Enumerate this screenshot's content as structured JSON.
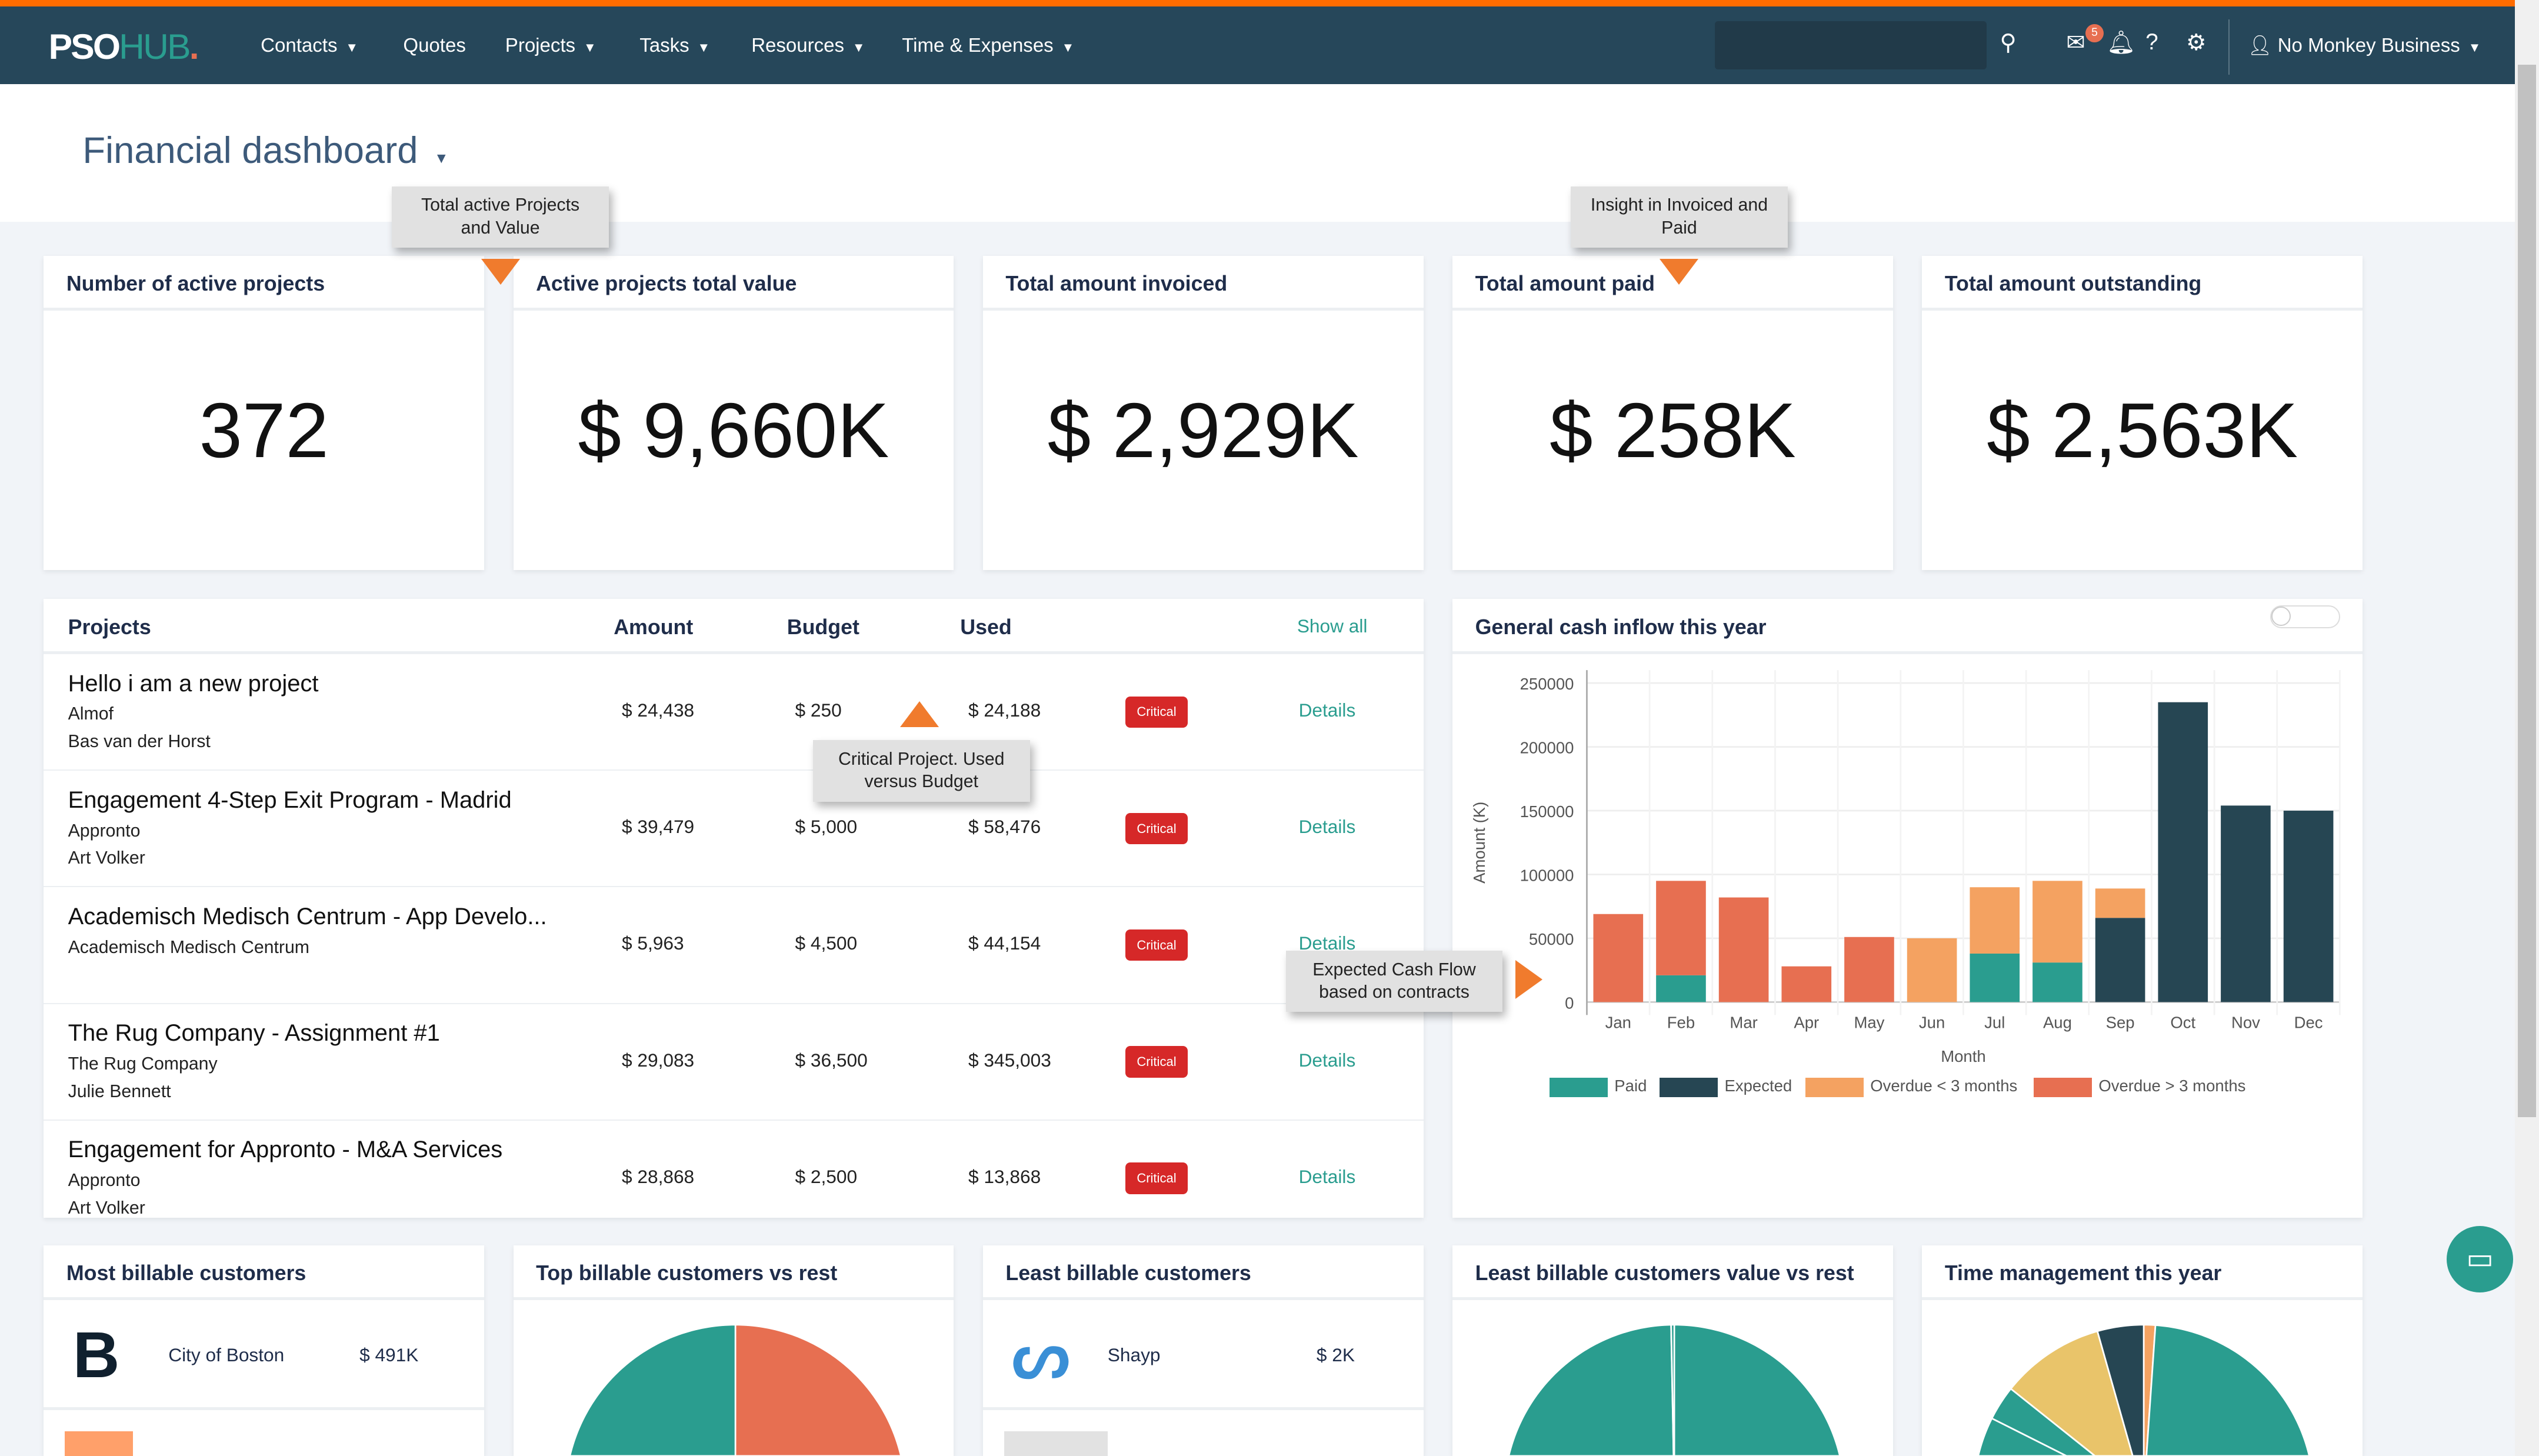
{
  "nav": {
    "logo_pso": "PSO",
    "logo_hub": "HUB",
    "logo_dot": ".",
    "items": [
      {
        "label": "Contacts",
        "caret": true
      },
      {
        "label": "Quotes",
        "caret": false
      },
      {
        "label": "Projects",
        "caret": true
      },
      {
        "label": "Tasks",
        "caret": true
      },
      {
        "label": "Resources",
        "caret": true
      },
      {
        "label": "Time & Expenses",
        "caret": true
      }
    ],
    "search_value": "",
    "notification_count": "5",
    "user": "No Monkey Business"
  },
  "page": {
    "title": "Financial dashboard"
  },
  "tooltips": {
    "active": "Total active Projects and Value",
    "invoiced": "Insight in Invoiced and Paid",
    "critical": "Critical Project. Used versus Budget",
    "cashflow": "Expected Cash Flow based on contracts"
  },
  "kpis": [
    {
      "title": "Number of active projects",
      "value": "372"
    },
    {
      "title": "Active projects total value",
      "value": "$ 9,660K"
    },
    {
      "title": "Total amount invoiced",
      "value": "$ 2,929K"
    },
    {
      "title": "Total amount paid",
      "value": "$ 258K"
    },
    {
      "title": "Total amount outstanding",
      "value": "$ 2,563K"
    }
  ],
  "projects": {
    "title": "Projects",
    "col_amount": "Amount",
    "col_budget": "Budget",
    "col_used": "Used",
    "show_all": "Show all",
    "rows": [
      {
        "name": "Hello i am a new project",
        "company": "Almof",
        "person": "Bas van der Horst",
        "amount": "$ 24,438",
        "budget": "$ 250",
        "used": "$ 24,188",
        "status": "Critical",
        "action": "Details"
      },
      {
        "name": "Engagement 4-Step Exit Program - Madrid",
        "company": "Appronto",
        "person": "Art Volker",
        "amount": "$ 39,479",
        "budget": "$ 5,000",
        "used": "$ 58,476",
        "status": "Critical",
        "action": "Details"
      },
      {
        "name": "Academisch Medisch Centrum - App Develo...",
        "company": "Academisch Medisch Centrum",
        "person": "",
        "amount": "$ 5,963",
        "budget": "$ 4,500",
        "used": "$ 44,154",
        "status": "Critical",
        "action": "Details"
      },
      {
        "name": "The Rug Company - Assignment #1",
        "company": "The Rug Company",
        "person": "Julie Bennett",
        "amount": "$ 29,083",
        "budget": "$ 36,500",
        "used": "$ 345,003",
        "status": "Critical",
        "action": "Details"
      },
      {
        "name": "Engagement for Appronto - M&A Services",
        "company": "Appronto",
        "person": "Art Volker",
        "amount": "$ 28,868",
        "budget": "$ 2,500",
        "used": "$ 13,868",
        "status": "Critical",
        "action": "Details"
      }
    ]
  },
  "chart_data": {
    "type": "bar",
    "stacked": true,
    "title": "General cash inflow this year",
    "xlabel": "Month",
    "ylabel": "Amount (K)",
    "ylim": [
      0,
      250000
    ],
    "yticks": [
      0,
      50000,
      100000,
      150000,
      200000,
      250000
    ],
    "grid": true,
    "legend": "bottom",
    "categories": [
      "Jan",
      "Feb",
      "Mar",
      "Apr",
      "May",
      "Jun",
      "Jul",
      "Aug",
      "Sep",
      "Oct",
      "Nov",
      "Dec"
    ],
    "series": [
      {
        "name": "Paid",
        "color": "#2a9d8f",
        "values": [
          0,
          21000,
          0,
          0,
          0,
          0,
          38000,
          31000,
          0,
          0,
          0,
          0
        ]
      },
      {
        "name": "Expected",
        "color": "#264653",
        "values": [
          0,
          0,
          0,
          0,
          0,
          0,
          0,
          0,
          66000,
          235000,
          154000,
          150000
        ]
      },
      {
        "name": "Overdue < 3 months",
        "color": "#f4a261",
        "values": [
          0,
          0,
          0,
          0,
          0,
          50000,
          52000,
          64000,
          23000,
          0,
          0,
          0
        ]
      },
      {
        "name": "Overdue > 3 months",
        "color": "#e76f51",
        "values": [
          69000,
          74000,
          82000,
          28000,
          51000,
          0,
          0,
          0,
          0,
          0,
          0,
          0
        ]
      }
    ]
  },
  "bottom": {
    "most_billable": {
      "title": "Most billable customers",
      "items": [
        {
          "name": "City of Boston",
          "value": "$ 491K"
        }
      ]
    },
    "top_vs_rest": {
      "title": "Top billable customers vs rest",
      "slices": [
        {
          "value": 50,
          "color": "#e76f51"
        },
        {
          "value": 50,
          "color": "#2a9d8f"
        }
      ]
    },
    "least_billable": {
      "title": "Least billable customers",
      "items": [
        {
          "name": "Shayp",
          "value": "$ 2K"
        }
      ]
    },
    "least_vs_rest": {
      "title": "Least billable customers value vs rest",
      "slices": [
        {
          "value": 99.7,
          "color": "#2a9d8f"
        },
        {
          "value": 0.3,
          "color": "#2a9d8f"
        }
      ]
    },
    "time": {
      "title": "Time management this year",
      "slices": [
        {
          "value": 1,
          "color": "#f4a261"
        },
        {
          "value": 74,
          "color": "#2a9d8f"
        },
        {
          "value": 3,
          "color": "#2a9d8f"
        },
        {
          "value": 9,
          "color": "#e9c46a"
        },
        {
          "value": 4,
          "color": "#264653"
        }
      ]
    }
  },
  "colors": {
    "accent": "#ff6c00",
    "nav": "#26475a",
    "teal": "#2a9d8f",
    "critical": "#d62828"
  }
}
